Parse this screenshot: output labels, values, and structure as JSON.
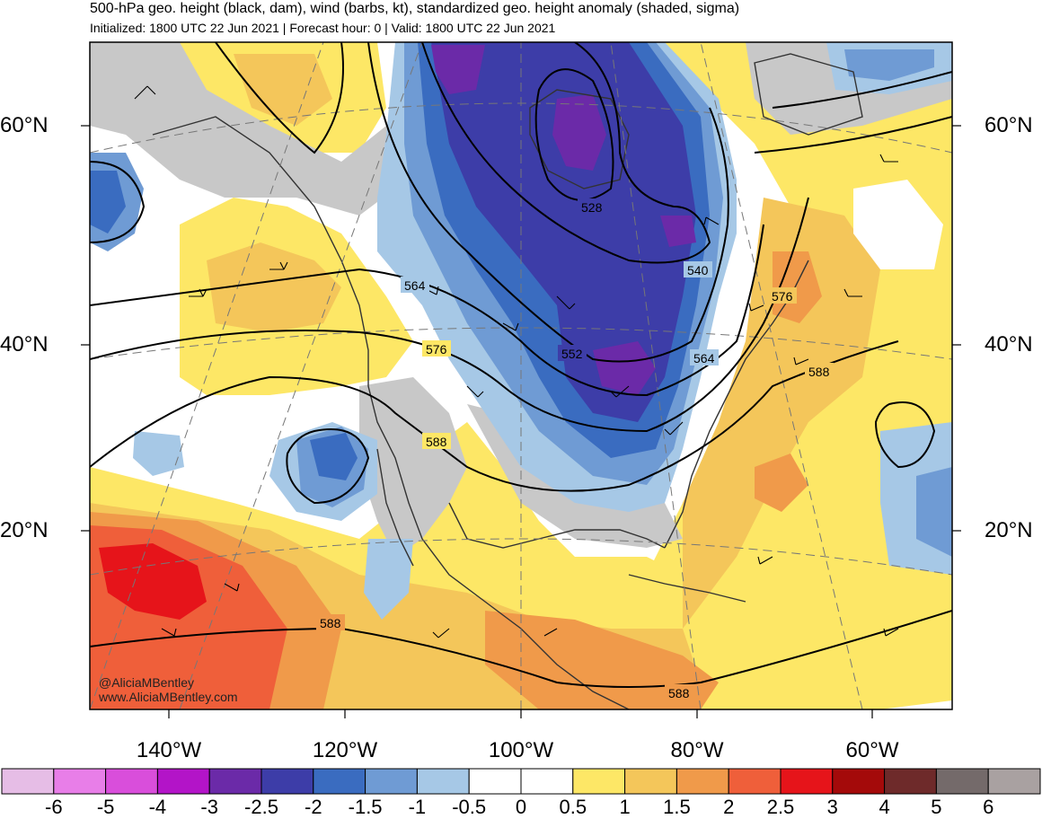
{
  "header": {
    "title": "500-hPa geo. height (black, dam), wind (barbs, kt), standardized geo. height anomaly (shaded, sigma)",
    "subtitle": "Initialized: 1800 UTC 22 Jun 2021 | Forecast hour: 0 | Valid: 1800 UTC 22 Jun 2021"
  },
  "axes": {
    "lat_labels": [
      "60°N",
      "40°N",
      "20°N"
    ],
    "lon_labels": [
      "140°W",
      "120°W",
      "100°W",
      "80°W",
      "60°W"
    ]
  },
  "contour_labels": [
    "528",
    "540",
    "552",
    "564",
    "564",
    "576",
    "576",
    "588",
    "588",
    "588",
    "588"
  ],
  "colorbar": {
    "labels": [
      "-6",
      "-5",
      "-4",
      "-3",
      "-2.5",
      "-2",
      "-1.5",
      "-1",
      "-0.5",
      "0",
      "0.5",
      "1",
      "1.5",
      "2",
      "2.5",
      "3",
      "4",
      "5",
      "6"
    ],
    "colors": [
      "#e6bde6",
      "#e87ee8",
      "#d94edb",
      "#b314c8",
      "#6b2aa8",
      "#3d3da8",
      "#3a6cc0",
      "#6f9bd4",
      "#a6c8e6",
      "#ffffff",
      "#ffffff",
      "#fde766",
      "#f4c65a",
      "#f09a4a",
      "#ef5f3a",
      "#e6141a",
      "#a40a0a",
      "#6e2a2a",
      "#746a6a",
      "#a9a1a1"
    ]
  },
  "credit": {
    "handle": "@AliciaMBentley",
    "site": "www.AliciaMBentley.com"
  },
  "palette": {
    "land_gray": "#c8c8c8",
    "neg_light": "#a6c8e6",
    "neg_mid": "#6f9bd4",
    "neg_strong": "#3a6cc0",
    "neg_deep": "#3d3da8",
    "neg_core": "#6b2aa8",
    "pos_light": "#fde766",
    "pos_mid": "#f4c65a",
    "pos_strong": "#f09a4a",
    "pos_hot": "#ef5f3a",
    "pos_core": "#e6141a"
  }
}
